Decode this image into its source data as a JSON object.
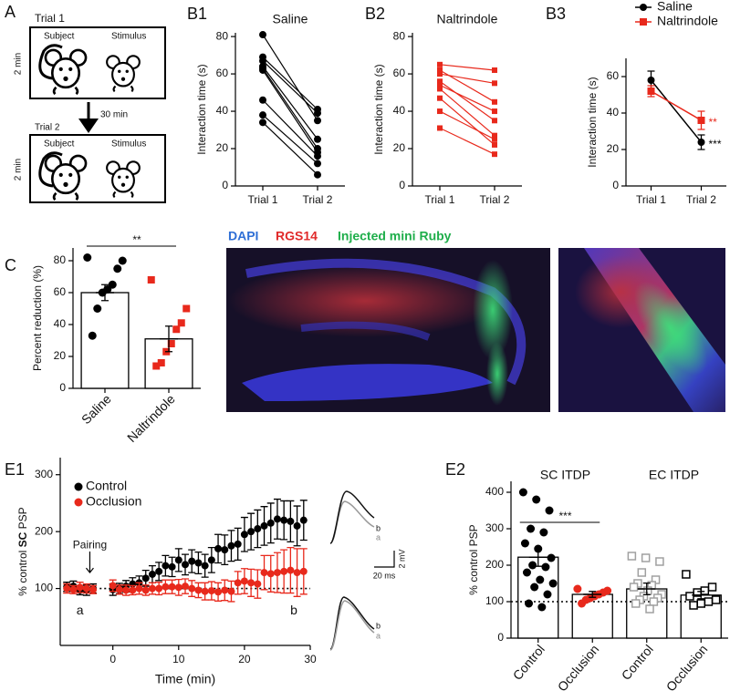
{
  "schematic": {
    "panel": "A",
    "trial1": {
      "label": "Trial 1",
      "subject": "Subject",
      "stimulus": "Stimulus",
      "duration": "2 min"
    },
    "interval": "30 min",
    "trial2": {
      "label": "Trial 2",
      "subject": "Subject",
      "stimulus": "Stimulus",
      "duration": "2 min"
    }
  },
  "images": {
    "labels": [
      {
        "text": "DAPI",
        "color": "#2f6fd6"
      },
      {
        "text": "RGS14",
        "color": "#e02a2a"
      },
      {
        "text": "Injected mini Ruby",
        "color": "#1fae4b"
      }
    ]
  },
  "chart_data": [
    {
      "panel": "B1",
      "type": "paired",
      "title": "Saline",
      "y_label": "Interaction time (s)",
      "categories": [
        "Trial 1",
        "Trial 2"
      ],
      "color": "#000000",
      "marker": "circle",
      "series": [
        {
          "values": [
            81,
            35
          ]
        },
        {
          "values": [
            69,
            41
          ]
        },
        {
          "values": [
            67,
            39
          ]
        },
        {
          "values": [
            64,
            25
          ]
        },
        {
          "values": [
            63,
            20
          ]
        },
        {
          "values": [
            62,
            18
          ]
        },
        {
          "values": [
            46,
            16
          ]
        },
        {
          "values": [
            38,
            12
          ]
        },
        {
          "values": [
            34,
            6
          ]
        }
      ],
      "ylim": [
        0,
        82
      ],
      "yticks": [
        0,
        20,
        40,
        60,
        80
      ]
    },
    {
      "panel": "B2",
      "type": "paired",
      "title": "Naltrindole",
      "y_label": "Interaction time (s)",
      "categories": [
        "Trial 1",
        "Trial 2"
      ],
      "color": "#e8291c",
      "marker": "square",
      "series": [
        {
          "values": [
            65,
            62
          ]
        },
        {
          "values": [
            62,
            45
          ]
        },
        {
          "values": [
            60,
            55
          ]
        },
        {
          "values": [
            56,
            35
          ]
        },
        {
          "values": [
            54,
            40
          ]
        },
        {
          "values": [
            52,
            27
          ]
        },
        {
          "values": [
            47,
            22
          ]
        },
        {
          "values": [
            40,
            25
          ]
        },
        {
          "values": [
            31,
            17
          ]
        }
      ],
      "ylim": [
        0,
        82
      ],
      "yticks": [
        0,
        20,
        40,
        60,
        80
      ]
    },
    {
      "panel": "B3",
      "type": "line",
      "y_label": "Interaction time (s)",
      "categories": [
        "Trial 1",
        "Trial 2"
      ],
      "legend": "top",
      "series": [
        {
          "name": "Saline",
          "color": "#000000",
          "marker": "circle",
          "values": [
            58,
            24
          ],
          "errors": [
            5,
            4
          ],
          "significance": [
            null,
            "***"
          ]
        },
        {
          "name": "Naltrindole",
          "color": "#e8291c",
          "marker": "square",
          "values": [
            52,
            36
          ],
          "errors": [
            3,
            5
          ],
          "significance": [
            null,
            "**"
          ]
        }
      ],
      "ylim": [
        0,
        70
      ],
      "yticks": [
        0,
        20,
        40,
        60
      ]
    },
    {
      "panel": "C",
      "type": "bar",
      "y_label": "Percent reduction (%)",
      "categories": [
        "Saline",
        "Naltrindole"
      ],
      "rotate_x_labels": true,
      "values": [
        60,
        31
      ],
      "errors": [
        5,
        8
      ],
      "bar_color": "#ffffff",
      "points": [
        [
          82,
          80,
          75,
          65,
          62,
          60,
          50,
          33
        ],
        [
          68,
          50,
          41,
          37,
          28,
          23,
          16,
          14
        ]
      ],
      "point_colors": [
        "#000000",
        "#e8291c"
      ],
      "point_markers": [
        "circle",
        "square"
      ],
      "comparison_label": "**",
      "ylim": [
        0,
        88
      ],
      "yticks": [
        0,
        20,
        40,
        60,
        80
      ]
    },
    {
      "panel": "E1",
      "type": "scatter",
      "x_label": "Time (min)",
      "y_label_parts": [
        {
          "text": "% control "
        },
        {
          "text": "SC",
          "bold": true
        },
        {
          "text": " PSP"
        }
      ],
      "x": [
        -7,
        -6,
        -5,
        -4,
        -3,
        0,
        1,
        2,
        3,
        4,
        5,
        6,
        7,
        8,
        9,
        10,
        11,
        12,
        13,
        14,
        15,
        16,
        17,
        18,
        19,
        20,
        21,
        22,
        23,
        24,
        25,
        26,
        27,
        28,
        29
      ],
      "series": [
        {
          "name": "Control",
          "color": "#000000",
          "values": [
            103,
            104,
            97,
            97,
            100,
            98,
            100,
            104,
            108,
            110,
            118,
            125,
            130,
            140,
            138,
            150,
            142,
            148,
            145,
            140,
            150,
            170,
            168,
            175,
            178,
            195,
            200,
            205,
            210,
            215,
            222,
            220,
            218,
            210,
            220
          ],
          "errors": [
            8,
            9,
            8,
            9,
            8,
            10,
            9,
            10,
            11,
            12,
            14,
            15,
            16,
            18,
            17,
            20,
            18,
            20,
            19,
            20,
            22,
            25,
            26,
            27,
            28,
            30,
            32,
            33,
            34,
            35,
            35,
            34,
            36,
            35,
            35
          ]
        },
        {
          "name": "Occlusion",
          "color": "#e8291c",
          "values": [
            100,
            98,
            102,
            100,
            98,
            105,
            98,
            97,
            97,
            100,
            97,
            100,
            100,
            103,
            103,
            102,
            104,
            100,
            97,
            95,
            96,
            94,
            97,
            95,
            110,
            113,
            110,
            108,
            128,
            126,
            128,
            130,
            132,
            128,
            130
          ],
          "errors": [
            8,
            7,
            9,
            8,
            7,
            10,
            8,
            9,
            8,
            10,
            9,
            10,
            11,
            12,
            12,
            14,
            13,
            14,
            13,
            15,
            16,
            16,
            18,
            18,
            20,
            22,
            24,
            25,
            30,
            32,
            35,
            38,
            40,
            42,
            40
          ]
        }
      ],
      "reference_line": 100,
      "annotations": {
        "pairing": "Pairing",
        "start": "a",
        "end": "b"
      },
      "inset": {
        "trace_labels": [
          "b",
          "a",
          "b",
          "a"
        ],
        "scale_y": "2 mV",
        "scale_x": "20 ms"
      },
      "xlim": [
        -8,
        30
      ],
      "xticks": [
        0,
        10,
        20,
        30
      ],
      "ylim": [
        0,
        330
      ],
      "yticks": [
        100,
        200,
        300
      ]
    },
    {
      "panel": "E2",
      "type": "bar",
      "y_label": "% control PSP",
      "categories": [
        "Control",
        "Occlusion",
        "Control",
        "Occlusion"
      ],
      "rotate_x_labels": true,
      "group_labels": [
        "SC ITDP",
        "EC ITDP"
      ],
      "values": [
        222,
        120,
        135,
        118
      ],
      "errors": [
        25,
        8,
        16,
        10
      ],
      "bar_color": "#ffffff",
      "points": [
        [
          400,
          380,
          350,
          300,
          290,
          260,
          245,
          220,
          200,
          195,
          180,
          160,
          150,
          140,
          120,
          95,
          85
        ],
        [
          135,
          130,
          125,
          120,
          115,
          110,
          105,
          95
        ],
        [
          225,
          220,
          210,
          180,
          160,
          150,
          145,
          140,
          130,
          120,
          115,
          110,
          105,
          100,
          95,
          80
        ],
        [
          175,
          140,
          130,
          125,
          115,
          105,
          100,
          95,
          90
        ]
      ],
      "point_colors": [
        "#000000",
        "#e8291c",
        "#a0a0a0",
        "#000000"
      ],
      "point_markers": [
        "circle",
        "circle",
        "open-square",
        "open-square"
      ],
      "comparison_label": "***",
      "reference_line": 100,
      "ylim": [
        0,
        430
      ],
      "yticks": [
        0,
        100,
        200,
        300,
        400
      ]
    }
  ]
}
